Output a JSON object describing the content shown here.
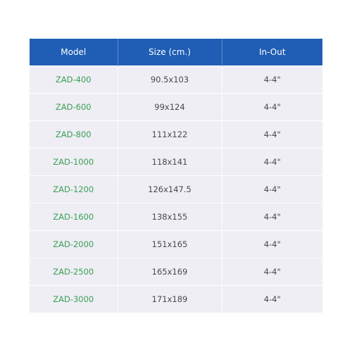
{
  "table": {
    "headers": [
      "Model",
      "Size (cm.)",
      "In-Out"
    ],
    "rows": [
      {
        "model": "ZAD-400",
        "size": "90.5x103",
        "in_out": "4-4\""
      },
      {
        "model": "ZAD-600",
        "size": "99x124",
        "in_out": "4-4\""
      },
      {
        "model": "ZAD-800",
        "size": "111x122",
        "in_out": "4-4\""
      },
      {
        "model": "ZAD-1000",
        "size": "118x141",
        "in_out": "4-4\""
      },
      {
        "model": "ZAD-1200",
        "size": "126x147.5",
        "in_out": "4-4\""
      },
      {
        "model": "ZAD-1600",
        "size": "138x155",
        "in_out": "4-4\""
      },
      {
        "model": "ZAD-2000",
        "size": "151x165",
        "in_out": "4-4\""
      },
      {
        "model": "ZAD-2500",
        "size": "165x169",
        "in_out": "4-4\""
      },
      {
        "model": "ZAD-3000",
        "size": "171x189",
        "in_out": "4-4\""
      }
    ]
  },
  "colors": {
    "header_bg": "#1f5eb4",
    "header_text": "#ffffff",
    "row_bg": "#eeeef4",
    "model_text": "#3a9f55",
    "cell_text": "#4a4a4a"
  }
}
